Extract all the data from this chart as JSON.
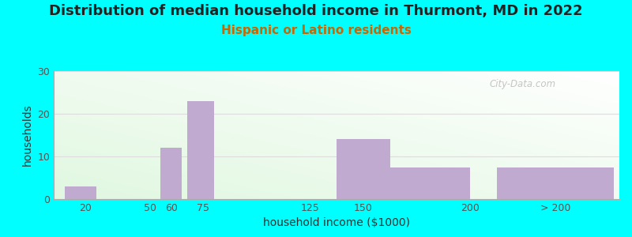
{
  "title": "Distribution of median household income in Thurmont, MD in 2022",
  "subtitle": "Hispanic or Latino residents",
  "xlabel": "household income ($1000)",
  "ylabel": "households",
  "background_color": "#00FFFF",
  "bar_color": "#c0aad0",
  "bar_edge_color": "#b0a0c0",
  "tick_labels": [
    "20",
    "50",
    "60",
    "75",
    "125",
    "150",
    "200",
    "> 200"
  ],
  "tick_positions": [
    20,
    50,
    60,
    75,
    125,
    150,
    200,
    240
  ],
  "bar_lefts": [
    10,
    35,
    55,
    67.5,
    87.5,
    137.5,
    162.5,
    212.5
  ],
  "bar_widths": [
    15,
    15,
    10,
    12.5,
    25,
    25,
    37.5,
    55
  ],
  "values": [
    3,
    0,
    12,
    23,
    0,
    14,
    7.5,
    7.5
  ],
  "xlim": [
    5,
    270
  ],
  "ylim": [
    0,
    30
  ],
  "yticks": [
    0,
    10,
    20,
    30
  ],
  "watermark": "City-Data.com",
  "title_fontsize": 13,
  "subtitle_fontsize": 11,
  "subtitle_color": "#cc6600",
  "axis_label_fontsize": 10
}
